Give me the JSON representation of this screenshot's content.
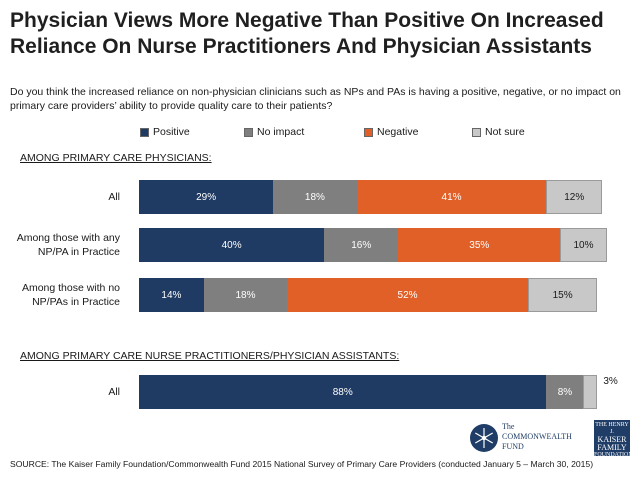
{
  "title": "Physician Views More Negative Than Positive On Increased Reliance On Nurse Practitioners And Physician Assistants",
  "question": "Do you think the increased reliance on non-physician clinicians such as NPs and PAs is having a positive, negative, or no impact on primary care providers’ ability to provide quality care to their patients?",
  "legend": [
    {
      "name": "Positive",
      "color": "#1f3a63"
    },
    {
      "name": "No impact",
      "color": "#7f7f7f"
    },
    {
      "name": "Negative",
      "color": "#e06028"
    },
    {
      "name": "Not sure",
      "color": "#c8c8c8"
    }
  ],
  "sections": [
    {
      "label": "AMONG PRIMARY CARE PHYSICIANS:"
    },
    {
      "label": "AMONG PRIMARY CARE NURSE PRACTITIONERS/PHYSICIAN ASSISTANTS:"
    }
  ],
  "chart_data": {
    "type": "bar",
    "orientation": "horizontal",
    "stacked": true,
    "categories": [
      "All",
      "Among those with any NP/PA in Practice",
      "Among those with no NP/PAs in Practice",
      "All"
    ],
    "category_lines": [
      [
        "All"
      ],
      [
        "Among those with any",
        "NP/PA in Practice"
      ],
      [
        "Among those with no",
        "NP/PAs in Practice"
      ],
      [
        "All"
      ]
    ],
    "category_section": [
      0,
      0,
      0,
      1
    ],
    "series": [
      {
        "name": "Positive",
        "values": [
          29,
          40,
          14,
          88
        ]
      },
      {
        "name": "No impact",
        "values": [
          18,
          16,
          18,
          8
        ]
      },
      {
        "name": "Negative",
        "values": [
          41,
          35,
          52,
          0
        ]
      },
      {
        "name": "Not sure",
        "values": [
          12,
          10,
          15,
          3
        ]
      }
    ],
    "labels": [
      [
        "29%",
        "18%",
        "41%",
        "12%"
      ],
      [
        "40%",
        "16%",
        "35%",
        "10%"
      ],
      [
        "14%",
        "18%",
        "52%",
        "15%"
      ],
      [
        "88%",
        "8%",
        "",
        "3%"
      ]
    ],
    "xlim": [
      0,
      100
    ],
    "legend_position": "top"
  },
  "source": "SOURCE: The Kaiser Family Foundation/Commonwealth Fund 2015 National Survey of Primary Care Providers (conducted January 5 – March 30, 2015)",
  "logos": {
    "commonwealth": [
      "The",
      "COMMONWEALTH",
      "FUND"
    ],
    "kaiser": [
      "THE HENRY J.",
      "KAISER",
      "FAMILY",
      "FOUNDATION"
    ]
  }
}
